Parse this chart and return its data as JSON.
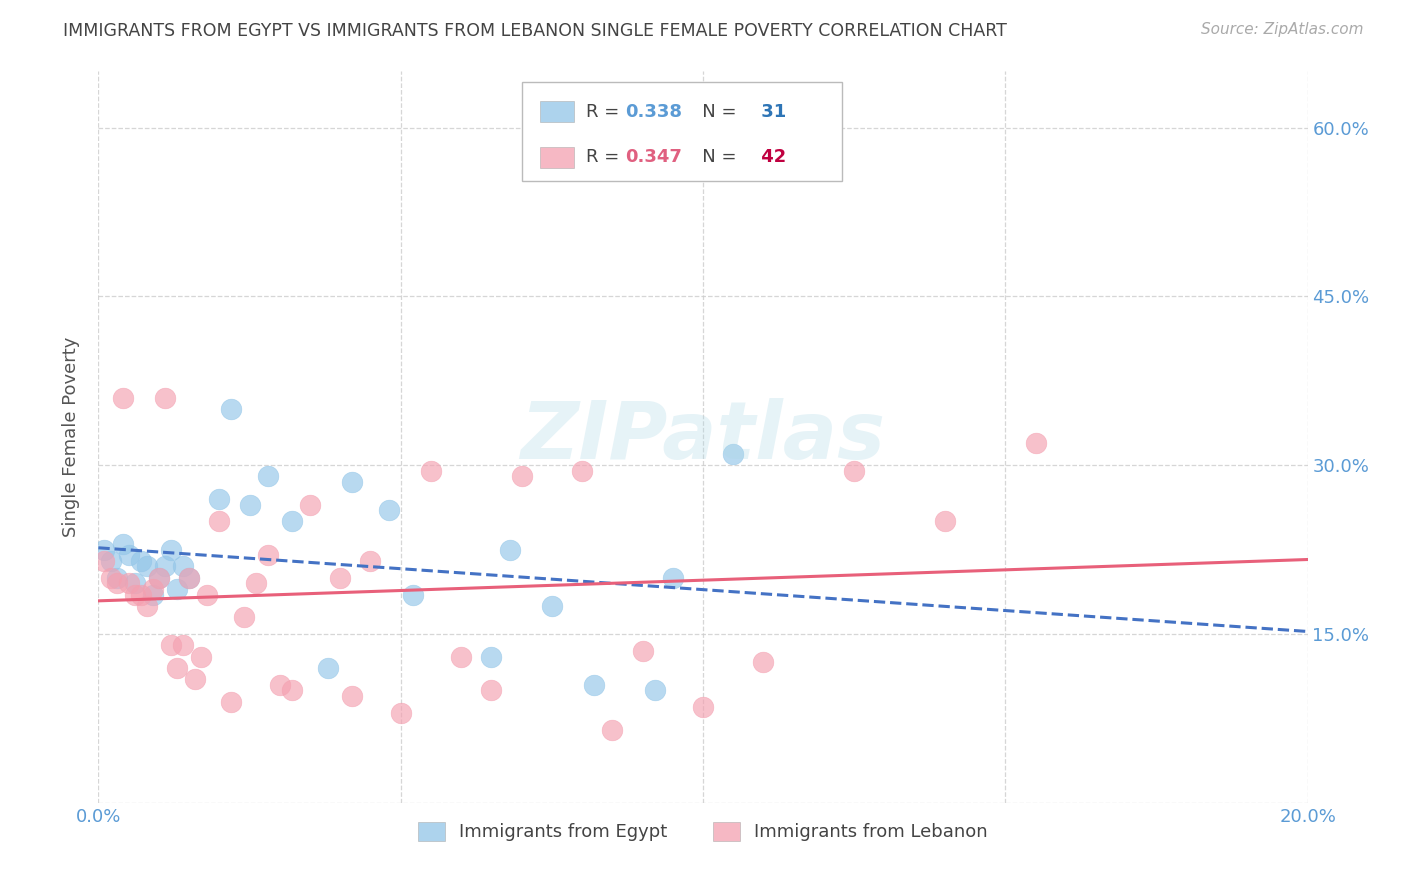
{
  "title": "IMMIGRANTS FROM EGYPT VS IMMIGRANTS FROM LEBANON SINGLE FEMALE POVERTY CORRELATION CHART",
  "source": "Source: ZipAtlas.com",
  "ylabel": "Single Female Poverty",
  "xlim": [
    0.0,
    0.2
  ],
  "ylim": [
    0.0,
    0.65
  ],
  "xtick_vals": [
    0.0,
    0.05,
    0.1,
    0.15,
    0.2
  ],
  "xtick_labels": [
    "0.0%",
    "",
    "",
    "",
    "20.0%"
  ],
  "ytick_vals": [
    0.0,
    0.15,
    0.3,
    0.45,
    0.6
  ],
  "ytick_labels_right": [
    "",
    "15.0%",
    "30.0%",
    "45.0%",
    "60.0%"
  ],
  "egypt_color": "#92C5E8",
  "lebanon_color": "#F4A0B0",
  "egypt_line_color": "#4472C4",
  "lebanon_line_color": "#E8607A",
  "egypt_R": 0.338,
  "egypt_N": 31,
  "lebanon_R": 0.347,
  "lebanon_N": 42,
  "egypt_scatter_x": [
    0.001,
    0.002,
    0.003,
    0.004,
    0.005,
    0.006,
    0.007,
    0.008,
    0.009,
    0.01,
    0.011,
    0.012,
    0.013,
    0.014,
    0.015,
    0.02,
    0.022,
    0.025,
    0.028,
    0.032,
    0.038,
    0.042,
    0.048,
    0.052,
    0.065,
    0.068,
    0.075,
    0.082,
    0.092,
    0.095,
    0.105
  ],
  "egypt_scatter_y": [
    0.225,
    0.215,
    0.2,
    0.23,
    0.22,
    0.195,
    0.215,
    0.21,
    0.185,
    0.2,
    0.21,
    0.225,
    0.19,
    0.21,
    0.2,
    0.27,
    0.35,
    0.265,
    0.29,
    0.25,
    0.12,
    0.285,
    0.26,
    0.185,
    0.13,
    0.225,
    0.175,
    0.105,
    0.1,
    0.2,
    0.31
  ],
  "lebanon_scatter_x": [
    0.001,
    0.002,
    0.003,
    0.004,
    0.005,
    0.006,
    0.007,
    0.008,
    0.009,
    0.01,
    0.011,
    0.012,
    0.013,
    0.014,
    0.015,
    0.016,
    0.017,
    0.018,
    0.02,
    0.022,
    0.024,
    0.026,
    0.028,
    0.03,
    0.032,
    0.035,
    0.04,
    0.042,
    0.045,
    0.05,
    0.055,
    0.06,
    0.065,
    0.07,
    0.08,
    0.085,
    0.09,
    0.1,
    0.11,
    0.125,
    0.14,
    0.155
  ],
  "lebanon_scatter_y": [
    0.215,
    0.2,
    0.195,
    0.36,
    0.195,
    0.185,
    0.185,
    0.175,
    0.19,
    0.2,
    0.36,
    0.14,
    0.12,
    0.14,
    0.2,
    0.11,
    0.13,
    0.185,
    0.25,
    0.09,
    0.165,
    0.195,
    0.22,
    0.105,
    0.1,
    0.265,
    0.2,
    0.095,
    0.215,
    0.08,
    0.295,
    0.13,
    0.1,
    0.29,
    0.295,
    0.065,
    0.135,
    0.085,
    0.125,
    0.295,
    0.25,
    0.32
  ],
  "watermark": "ZIPatlas",
  "background_color": "#FFFFFF",
  "grid_color": "#CCCCCC",
  "title_color": "#444444",
  "ylabel_color": "#555555",
  "tick_label_color": "#5B9BD5",
  "legend_egypt_R_color": "#5B9BD5",
  "legend_egypt_N_color": "#2E75B6",
  "legend_lebanon_R_color": "#E06080",
  "legend_lebanon_N_color": "#C00040"
}
